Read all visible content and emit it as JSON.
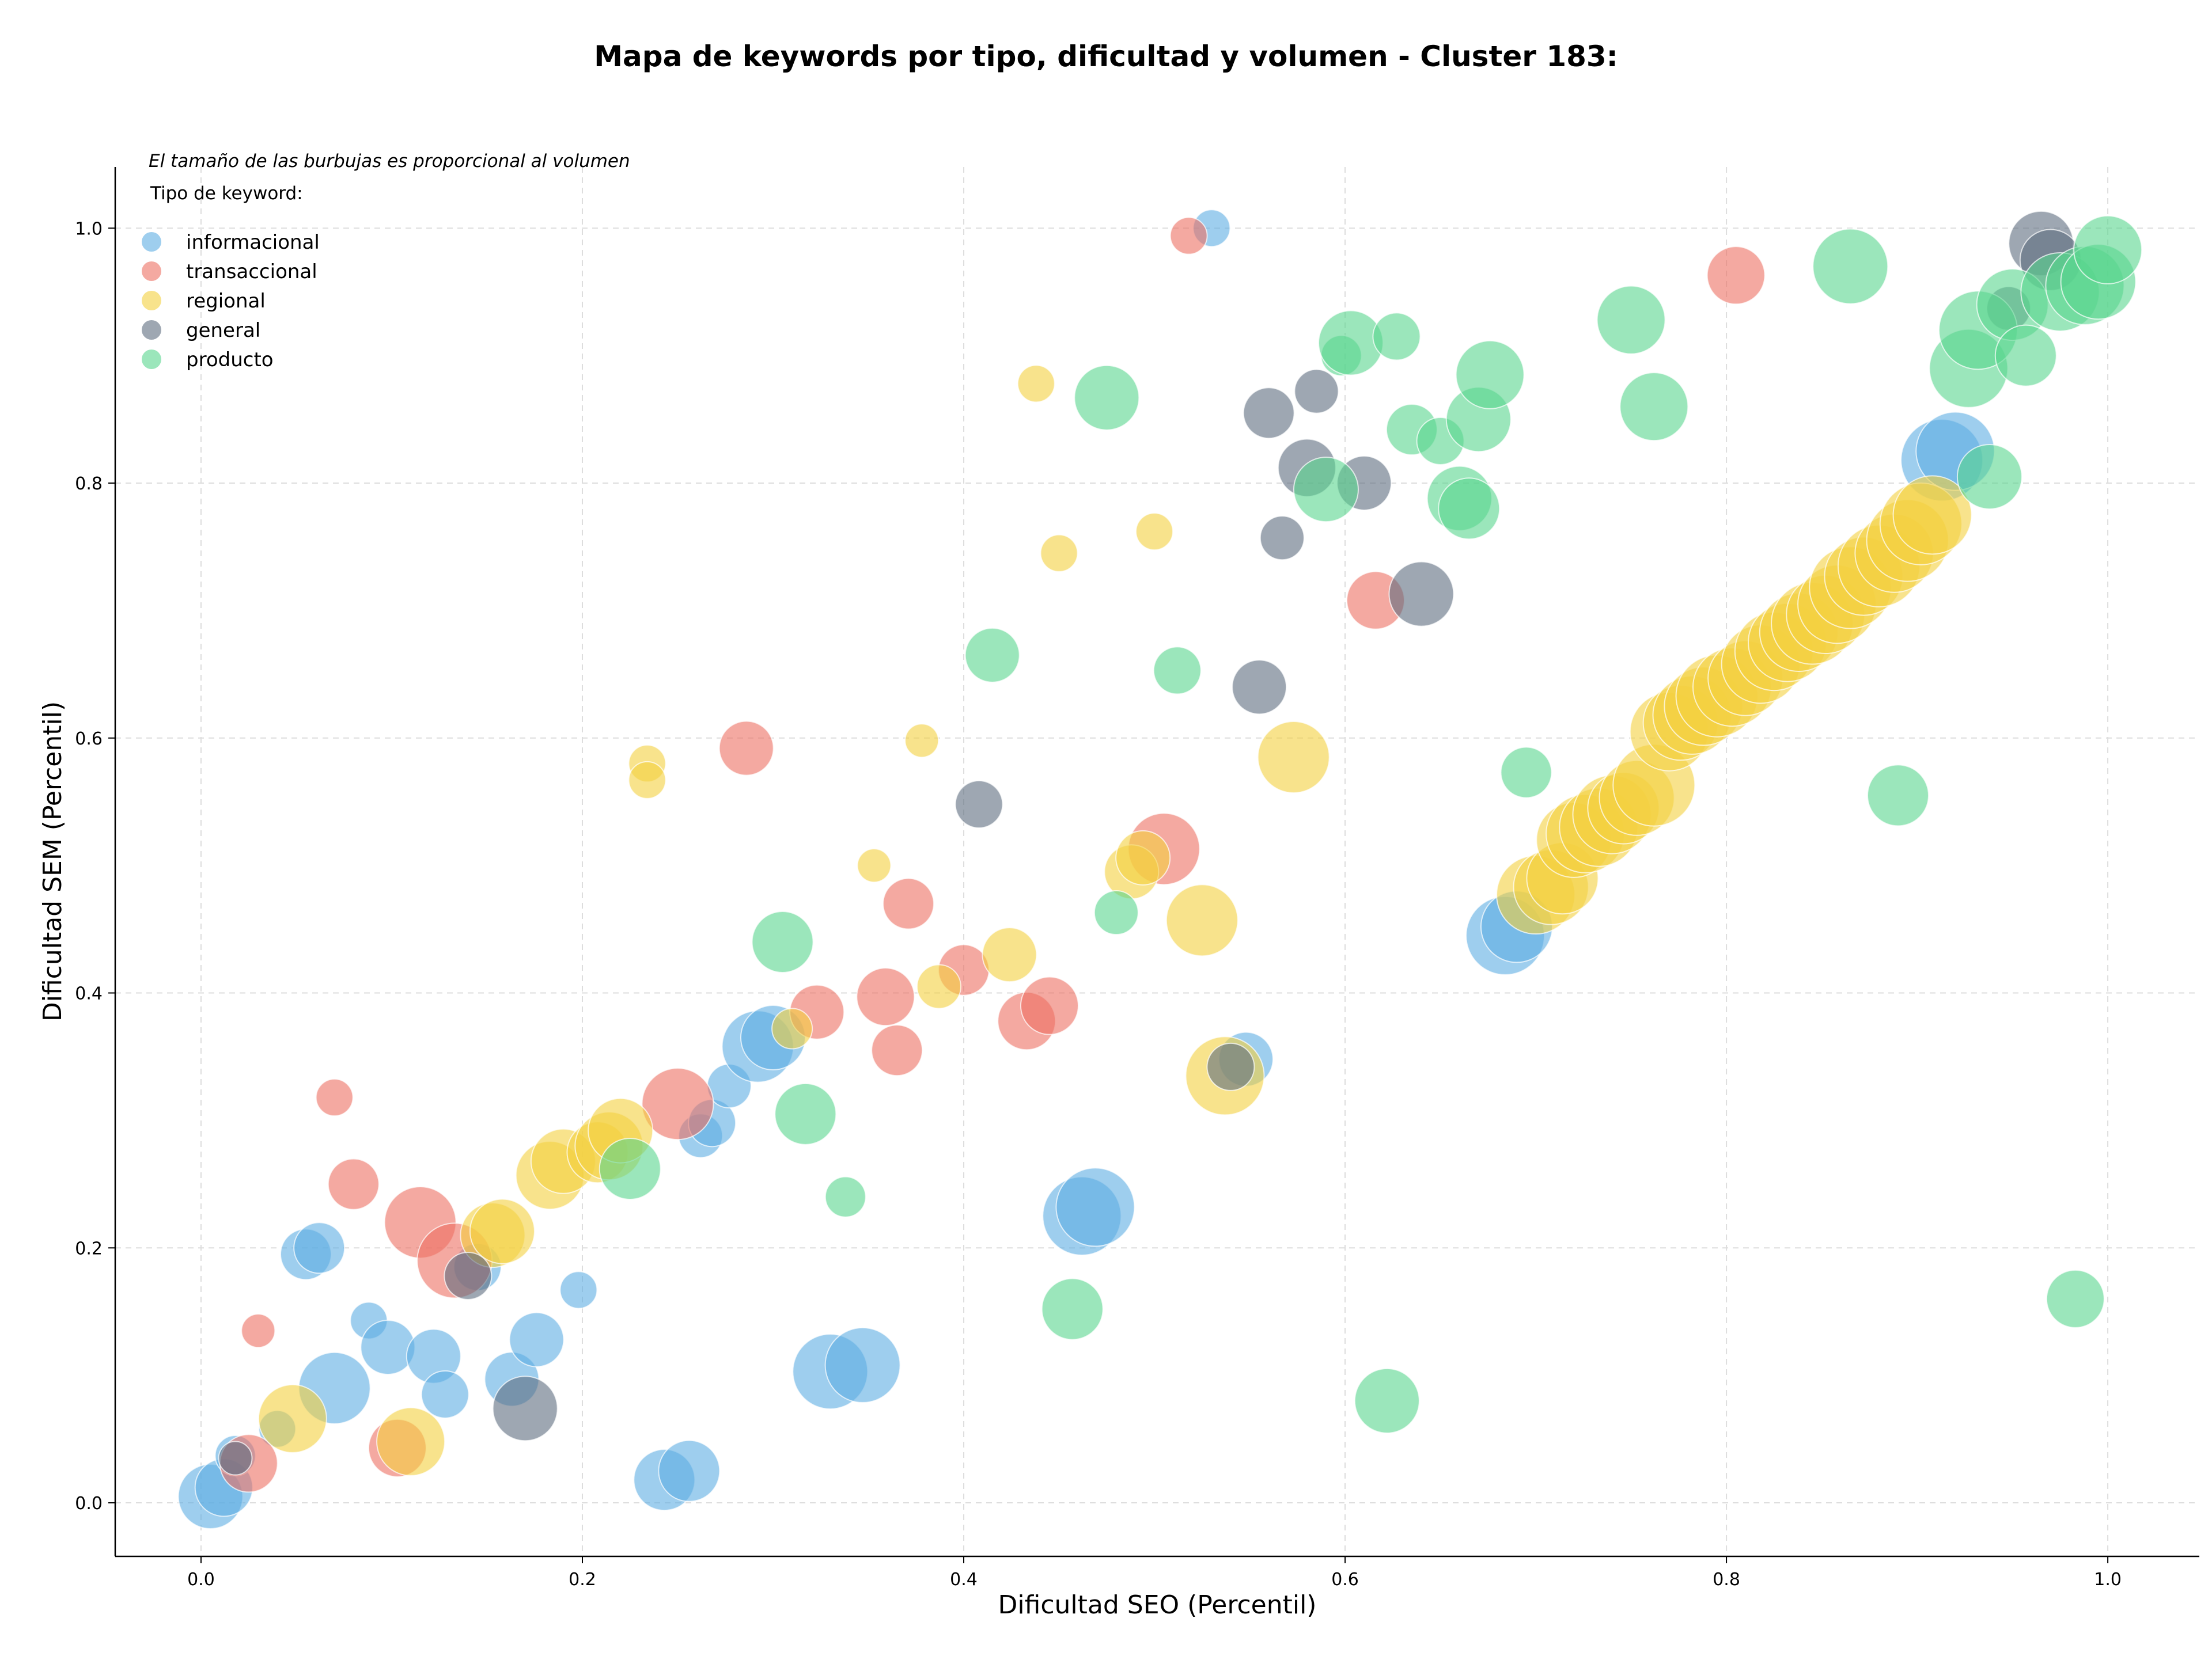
{
  "chart_data": {
    "type": "scatter",
    "title": "Mapa de keywords por tipo, dificultad y volumen - Cluster 183:",
    "xlabel": "Dificultad SEO (Percentil)",
    "ylabel": "Dificultad SEM (Percentil)",
    "xlim": [
      -0.045,
      1.048
    ],
    "ylim": [
      -0.042,
      1.048
    ],
    "xticks": [
      0.0,
      0.2,
      0.4,
      0.6,
      0.8,
      1.0
    ],
    "yticks": [
      0.0,
      0.2,
      0.4,
      0.6,
      0.8,
      1.0
    ],
    "xtick_labels": [
      "0.0",
      "0.2",
      "0.4",
      "0.6",
      "0.8",
      "1.0"
    ],
    "ytick_labels": [
      "0.0",
      "0.2",
      "0.4",
      "0.6",
      "0.8",
      "1.0"
    ],
    "grid": true,
    "size_note": "El tamaño de las burbujas es proporcional al volumen",
    "legend_title": "Tipo de keyword:",
    "legend_position": "top-left",
    "series": [
      {
        "name": "informacional",
        "color": "#5DADE2",
        "points": [
          {
            "x": 0.005,
            "y": 0.005,
            "s": 1.2
          },
          {
            "x": 0.012,
            "y": 0.012,
            "s": 1.0
          },
          {
            "x": 0.018,
            "y": 0.037,
            "s": 0.5
          },
          {
            "x": 0.04,
            "y": 0.058,
            "s": 0.4
          },
          {
            "x": 0.055,
            "y": 0.195,
            "s": 0.8
          },
          {
            "x": 0.062,
            "y": 0.2,
            "s": 0.8
          },
          {
            "x": 0.07,
            "y": 0.09,
            "s": 1.4
          },
          {
            "x": 0.088,
            "y": 0.143,
            "s": 0.4
          },
          {
            "x": 0.098,
            "y": 0.122,
            "s": 0.9
          },
          {
            "x": 0.122,
            "y": 0.115,
            "s": 0.9
          },
          {
            "x": 0.128,
            "y": 0.085,
            "s": 0.7
          },
          {
            "x": 0.145,
            "y": 0.185,
            "s": 0.7
          },
          {
            "x": 0.163,
            "y": 0.097,
            "s": 0.9
          },
          {
            "x": 0.176,
            "y": 0.128,
            "s": 0.9
          },
          {
            "x": 0.198,
            "y": 0.167,
            "s": 0.4
          },
          {
            "x": 0.243,
            "y": 0.018,
            "s": 1.1
          },
          {
            "x": 0.256,
            "y": 0.025,
            "s": 1.1
          },
          {
            "x": 0.262,
            "y": 0.288,
            "s": 0.6
          },
          {
            "x": 0.268,
            "y": 0.298,
            "s": 0.7
          },
          {
            "x": 0.277,
            "y": 0.327,
            "s": 0.6
          },
          {
            "x": 0.292,
            "y": 0.358,
            "s": 1.4
          },
          {
            "x": 0.3,
            "y": 0.365,
            "s": 1.2
          },
          {
            "x": 0.33,
            "y": 0.103,
            "s": 1.5
          },
          {
            "x": 0.347,
            "y": 0.108,
            "s": 1.5
          },
          {
            "x": 0.462,
            "y": 0.225,
            "s": 1.6
          },
          {
            "x": 0.469,
            "y": 0.232,
            "s": 1.6
          },
          {
            "x": 0.53,
            "y": 1.0,
            "s": 0.4
          },
          {
            "x": 0.548,
            "y": 0.348,
            "s": 0.9
          },
          {
            "x": 0.684,
            "y": 0.445,
            "s": 1.6
          },
          {
            "x": 0.69,
            "y": 0.452,
            "s": 1.4
          },
          {
            "x": 0.913,
            "y": 0.818,
            "s": 1.7
          },
          {
            "x": 0.92,
            "y": 0.825,
            "s": 1.6
          }
        ]
      },
      {
        "name": "transaccional",
        "color": "#EC7063",
        "points": [
          {
            "x": 0.025,
            "y": 0.031,
            "s": 1.0
          },
          {
            "x": 0.03,
            "y": 0.135,
            "s": 0.3
          },
          {
            "x": 0.07,
            "y": 0.318,
            "s": 0.4
          },
          {
            "x": 0.08,
            "y": 0.25,
            "s": 0.8
          },
          {
            "x": 0.103,
            "y": 0.043,
            "s": 1.0
          },
          {
            "x": 0.115,
            "y": 0.22,
            "s": 1.4
          },
          {
            "x": 0.133,
            "y": 0.19,
            "s": 1.5
          },
          {
            "x": 0.25,
            "y": 0.313,
            "s": 1.4
          },
          {
            "x": 0.286,
            "y": 0.592,
            "s": 0.9
          },
          {
            "x": 0.323,
            "y": 0.385,
            "s": 0.9
          },
          {
            "x": 0.359,
            "y": 0.397,
            "s": 1.0
          },
          {
            "x": 0.365,
            "y": 0.355,
            "s": 0.8
          },
          {
            "x": 0.371,
            "y": 0.47,
            "s": 0.8
          },
          {
            "x": 0.4,
            "y": 0.418,
            "s": 0.8
          },
          {
            "x": 0.433,
            "y": 0.378,
            "s": 1.0
          },
          {
            "x": 0.445,
            "y": 0.39,
            "s": 1.0
          },
          {
            "x": 0.505,
            "y": 0.513,
            "s": 1.4
          },
          {
            "x": 0.518,
            "y": 0.994,
            "s": 0.4
          },
          {
            "x": 0.616,
            "y": 0.708,
            "s": 1.0
          },
          {
            "x": 0.805,
            "y": 0.963,
            "s": 1.0
          }
        ]
      },
      {
        "name": "regional",
        "color": "#F4D03F",
        "points": [
          {
            "x": 0.048,
            "y": 0.066,
            "s": 1.3
          },
          {
            "x": 0.11,
            "y": 0.048,
            "s": 1.3
          },
          {
            "x": 0.153,
            "y": 0.21,
            "s": 1.2
          },
          {
            "x": 0.158,
            "y": 0.213,
            "s": 1.2
          },
          {
            "x": 0.183,
            "y": 0.257,
            "s": 1.3
          },
          {
            "x": 0.19,
            "y": 0.268,
            "s": 1.2
          },
          {
            "x": 0.208,
            "y": 0.275,
            "s": 1.1
          },
          {
            "x": 0.214,
            "y": 0.28,
            "s": 1.3
          },
          {
            "x": 0.22,
            "y": 0.292,
            "s": 1.2
          },
          {
            "x": 0.234,
            "y": 0.58,
            "s": 0.4
          },
          {
            "x": 0.234,
            "y": 0.567,
            "s": 0.4
          },
          {
            "x": 0.31,
            "y": 0.372,
            "s": 0.5
          },
          {
            "x": 0.353,
            "y": 0.5,
            "s": 0.3
          },
          {
            "x": 0.378,
            "y": 0.598,
            "s": 0.3
          },
          {
            "x": 0.387,
            "y": 0.405,
            "s": 0.6
          },
          {
            "x": 0.424,
            "y": 0.43,
            "s": 0.9
          },
          {
            "x": 0.438,
            "y": 0.878,
            "s": 0.4
          },
          {
            "x": 0.45,
            "y": 0.745,
            "s": 0.4
          },
          {
            "x": 0.488,
            "y": 0.495,
            "s": 0.9
          },
          {
            "x": 0.494,
            "y": 0.506,
            "s": 0.9
          },
          {
            "x": 0.5,
            "y": 0.762,
            "s": 0.4
          },
          {
            "x": 0.525,
            "y": 0.457,
            "s": 1.4
          },
          {
            "x": 0.537,
            "y": 0.335,
            "s": 1.6
          },
          {
            "x": 0.573,
            "y": 0.585,
            "s": 1.4
          },
          {
            "x": 0.7,
            "y": 0.477,
            "s": 1.6
          },
          {
            "x": 0.708,
            "y": 0.483,
            "s": 1.5
          },
          {
            "x": 0.714,
            "y": 0.49,
            "s": 1.4
          },
          {
            "x": 0.72,
            "y": 0.52,
            "s": 1.5
          },
          {
            "x": 0.726,
            "y": 0.525,
            "s": 1.6
          },
          {
            "x": 0.733,
            "y": 0.53,
            "s": 1.6
          },
          {
            "x": 0.74,
            "y": 0.54,
            "s": 1.6
          },
          {
            "x": 0.746,
            "y": 0.545,
            "s": 1.4
          },
          {
            "x": 0.753,
            "y": 0.553,
            "s": 1.5
          },
          {
            "x": 0.762,
            "y": 0.563,
            "s": 1.7
          },
          {
            "x": 0.77,
            "y": 0.605,
            "s": 1.6
          },
          {
            "x": 0.776,
            "y": 0.612,
            "s": 1.5
          },
          {
            "x": 0.782,
            "y": 0.618,
            "s": 1.6
          },
          {
            "x": 0.788,
            "y": 0.625,
            "s": 1.6
          },
          {
            "x": 0.795,
            "y": 0.633,
            "s": 1.7
          },
          {
            "x": 0.803,
            "y": 0.64,
            "s": 1.6
          },
          {
            "x": 0.81,
            "y": 0.647,
            "s": 1.5
          },
          {
            "x": 0.818,
            "y": 0.658,
            "s": 1.6
          },
          {
            "x": 0.825,
            "y": 0.668,
            "s": 1.6
          },
          {
            "x": 0.832,
            "y": 0.675,
            "s": 1.6
          },
          {
            "x": 0.838,
            "y": 0.683,
            "s": 1.6
          },
          {
            "x": 0.845,
            "y": 0.69,
            "s": 1.7
          },
          {
            "x": 0.852,
            "y": 0.697,
            "s": 1.6
          },
          {
            "x": 0.858,
            "y": 0.705,
            "s": 1.6
          },
          {
            "x": 0.865,
            "y": 0.718,
            "s": 1.7
          },
          {
            "x": 0.872,
            "y": 0.727,
            "s": 1.6
          },
          {
            "x": 0.88,
            "y": 0.735,
            "s": 1.7
          },
          {
            "x": 0.888,
            "y": 0.745,
            "s": 1.6
          },
          {
            "x": 0.895,
            "y": 0.755,
            "s": 1.7
          },
          {
            "x": 0.902,
            "y": 0.768,
            "s": 1.7
          },
          {
            "x": 0.908,
            "y": 0.775,
            "s": 1.6
          }
        ]
      },
      {
        "name": "general",
        "color": "#5D6D7E",
        "points": [
          {
            "x": 0.018,
            "y": 0.035,
            "s": 0.3
          },
          {
            "x": 0.14,
            "y": 0.178,
            "s": 0.7
          },
          {
            "x": 0.17,
            "y": 0.074,
            "s": 1.2
          },
          {
            "x": 0.408,
            "y": 0.548,
            "s": 0.7
          },
          {
            "x": 0.54,
            "y": 0.342,
            "s": 0.7
          },
          {
            "x": 0.555,
            "y": 0.64,
            "s": 0.9
          },
          {
            "x": 0.56,
            "y": 0.855,
            "s": 0.8
          },
          {
            "x": 0.567,
            "y": 0.757,
            "s": 0.6
          },
          {
            "x": 0.58,
            "y": 0.812,
            "s": 1.0
          },
          {
            "x": 0.585,
            "y": 0.872,
            "s": 0.6
          },
          {
            "x": 0.61,
            "y": 0.8,
            "s": 0.9
          },
          {
            "x": 0.64,
            "y": 0.713,
            "s": 1.2
          },
          {
            "x": 0.948,
            "y": 0.937,
            "s": 0.6
          },
          {
            "x": 0.965,
            "y": 0.988,
            "s": 1.2
          },
          {
            "x": 0.97,
            "y": 0.975,
            "s": 1.1
          }
        ]
      },
      {
        "name": "producto",
        "color": "#58D68D",
        "points": [
          {
            "x": 0.225,
            "y": 0.262,
            "s": 1.1
          },
          {
            "x": 0.305,
            "y": 0.44,
            "s": 1.1
          },
          {
            "x": 0.317,
            "y": 0.305,
            "s": 1.1
          },
          {
            "x": 0.338,
            "y": 0.24,
            "s": 0.5
          },
          {
            "x": 0.415,
            "y": 0.665,
            "s": 0.9
          },
          {
            "x": 0.457,
            "y": 0.152,
            "s": 1.1
          },
          {
            "x": 0.475,
            "y": 0.867,
            "s": 1.2
          },
          {
            "x": 0.48,
            "y": 0.463,
            "s": 0.6
          },
          {
            "x": 0.512,
            "y": 0.653,
            "s": 0.7
          },
          {
            "x": 0.59,
            "y": 0.795,
            "s": 1.2
          },
          {
            "x": 0.598,
            "y": 0.9,
            "s": 0.5
          },
          {
            "x": 0.603,
            "y": 0.91,
            "s": 1.2
          },
          {
            "x": 0.622,
            "y": 0.08,
            "s": 1.2
          },
          {
            "x": 0.627,
            "y": 0.915,
            "s": 0.7
          },
          {
            "x": 0.635,
            "y": 0.842,
            "s": 0.8
          },
          {
            "x": 0.65,
            "y": 0.833,
            "s": 0.7
          },
          {
            "x": 0.66,
            "y": 0.788,
            "s": 1.2
          },
          {
            "x": 0.665,
            "y": 0.78,
            "s": 1.1
          },
          {
            "x": 0.67,
            "y": 0.85,
            "s": 1.2
          },
          {
            "x": 0.676,
            "y": 0.885,
            "s": 1.3
          },
          {
            "x": 0.695,
            "y": 0.573,
            "s": 0.8
          },
          {
            "x": 0.75,
            "y": 0.928,
            "s": 1.3
          },
          {
            "x": 0.762,
            "y": 0.86,
            "s": 1.3
          },
          {
            "x": 0.865,
            "y": 0.97,
            "s": 1.5
          },
          {
            "x": 0.89,
            "y": 0.555,
            "s": 1.1
          },
          {
            "x": 0.927,
            "y": 0.89,
            "s": 1.6
          },
          {
            "x": 0.932,
            "y": 0.92,
            "s": 1.6
          },
          {
            "x": 0.938,
            "y": 0.805,
            "s": 1.2
          },
          {
            "x": 0.95,
            "y": 0.94,
            "s": 1.4
          },
          {
            "x": 0.957,
            "y": 0.9,
            "s": 1.1
          },
          {
            "x": 0.975,
            "y": 0.95,
            "s": 1.6
          },
          {
            "x": 0.983,
            "y": 0.16,
            "s": 1.0
          },
          {
            "x": 0.988,
            "y": 0.955,
            "s": 1.6
          },
          {
            "x": 0.995,
            "y": 0.958,
            "s": 1.5
          },
          {
            "x": 1.0,
            "y": 0.983,
            "s": 1.3
          }
        ]
      }
    ]
  }
}
